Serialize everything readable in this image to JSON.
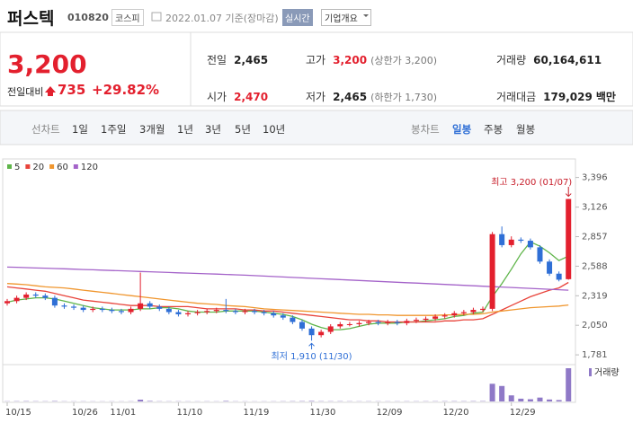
{
  "header": {
    "name": "퍼스텍",
    "code": "010820",
    "market": "코스피",
    "date": "2022.01.07 기준(장마감)",
    "realtime": "실시간",
    "company": "기업개요"
  },
  "price": {
    "current": "3,200",
    "change_label": "전일대비",
    "change": "735",
    "rate": "+29.82%"
  },
  "stats": [
    {
      "label": "전일",
      "value": "2,465"
    },
    {
      "label": "고가",
      "value": "3,200",
      "note": "(상한가 3,200)"
    },
    {
      "label": "거래량",
      "value": "60,164,611"
    },
    {
      "label": "시가",
      "value": "2,470"
    },
    {
      "label": "저가",
      "value": "2,465",
      "note": "(하한가 1,730)"
    },
    {
      "label": "거래대금",
      "value": "179,029",
      "unit": "백만"
    }
  ],
  "tabs": {
    "line_label": "선차트",
    "line": [
      "1일",
      "1주일",
      "3개월",
      "1년",
      "3년",
      "5년",
      "10년"
    ],
    "candle_label": "봉차트",
    "candle": [
      "일봉",
      "주봉",
      "월봉"
    ]
  },
  "chart_data": {
    "type": "candlestick",
    "categories": [
      "10/15",
      null,
      null,
      null,
      null,
      null,
      null,
      "10/26",
      null,
      null,
      null,
      "11/01",
      null,
      null,
      null,
      null,
      null,
      null,
      "11/10",
      null,
      null,
      null,
      null,
      null,
      null,
      "11/19",
      null,
      null,
      null,
      null,
      null,
      null,
      "11/30",
      null,
      null,
      null,
      null,
      null,
      null,
      "12/09",
      null,
      null,
      null,
      null,
      null,
      null,
      "12/20",
      null,
      null,
      null,
      null,
      null,
      null,
      "12/29",
      null,
      null,
      null,
      null,
      null,
      null
    ],
    "open": [
      2250,
      2270,
      2300,
      2330,
      2320,
      2300,
      2230,
      2220,
      2210,
      2190,
      2200,
      2190,
      2180,
      2170,
      2200,
      2250,
      2220,
      2200,
      2170,
      2150,
      2160,
      2170,
      2180,
      2190,
      2180,
      2170,
      2180,
      2170,
      2160,
      2140,
      2120,
      2080,
      2020,
      1960,
      1990,
      2040,
      2060,
      2060,
      2070,
      2080,
      2070,
      2080,
      2070,
      2090,
      2100,
      2110,
      2130,
      2140,
      2160,
      2170,
      2190,
      2200,
      2880,
      2780,
      2830,
      2820,
      2760,
      2630,
      2520,
      2470
    ],
    "high": [
      2290,
      2320,
      2350,
      2350,
      2340,
      2320,
      2250,
      2240,
      2230,
      2220,
      2220,
      2210,
      2200,
      2220,
      2530,
      2270,
      2240,
      2220,
      2190,
      2180,
      2190,
      2200,
      2210,
      2290,
      2200,
      2200,
      2200,
      2190,
      2180,
      2160,
      2140,
      2100,
      2040,
      2010,
      2060,
      2080,
      2080,
      2090,
      2100,
      2100,
      2100,
      2100,
      2110,
      2120,
      2130,
      2150,
      2160,
      2180,
      2190,
      2210,
      2220,
      2900,
      2950,
      2860,
      2850,
      2840,
      2780,
      2650,
      2540,
      3200
    ],
    "low": [
      2230,
      2250,
      2280,
      2300,
      2280,
      2210,
      2200,
      2190,
      2170,
      2170,
      2170,
      2160,
      2150,
      2150,
      2180,
      2200,
      2180,
      2150,
      2130,
      2130,
      2140,
      2150,
      2160,
      2160,
      2150,
      2150,
      2150,
      2140,
      2120,
      2100,
      2060,
      2000,
      1910,
      1940,
      1970,
      2020,
      2040,
      2040,
      2050,
      2050,
      2050,
      2050,
      2050,
      2070,
      2080,
      2090,
      2110,
      2120,
      2140,
      2150,
      2170,
      2180,
      2760,
      2760,
      2800,
      2740,
      2610,
      2500,
      2450,
      2465
    ],
    "close": [
      2270,
      2300,
      2330,
      2320,
      2300,
      2230,
      2220,
      2210,
      2190,
      2200,
      2190,
      2180,
      2170,
      2200,
      2250,
      2220,
      2200,
      2170,
      2150,
      2160,
      2170,
      2180,
      2190,
      2180,
      2170,
      2180,
      2170,
      2160,
      2140,
      2120,
      2080,
      2020,
      1960,
      1990,
      2040,
      2060,
      2060,
      2070,
      2080,
      2070,
      2080,
      2070,
      2090,
      2100,
      2110,
      2130,
      2140,
      2160,
      2170,
      2190,
      2200,
      2880,
      2780,
      2830,
      2820,
      2760,
      2630,
      2520,
      2465,
      3200
    ],
    "up_color": "#e3202e",
    "down_color": "#2f6fd6",
    "ma": [
      {
        "name": "5",
        "color": "#5fb54a",
        "values": [
          2260,
          2280,
          2290,
          2300,
          2300,
          2290,
          2270,
          2250,
          2230,
          2210,
          2200,
          2190,
          2190,
          2190,
          2200,
          2200,
          2210,
          2210,
          2200,
          2180,
          2170,
          2170,
          2170,
          2180,
          2180,
          2180,
          2180,
          2170,
          2160,
          2150,
          2130,
          2100,
          2060,
          2030,
          2010,
          2010,
          2020,
          2040,
          2060,
          2070,
          2070,
          2070,
          2080,
          2080,
          2090,
          2100,
          2110,
          2130,
          2140,
          2160,
          2170,
          2310,
          2430,
          2560,
          2700,
          2810,
          2770,
          2710,
          2640,
          2680
        ]
      },
      {
        "name": "20",
        "color": "#e8433a",
        "values": [
          2400,
          2390,
          2380,
          2370,
          2360,
          2340,
          2320,
          2300,
          2280,
          2270,
          2260,
          2250,
          2240,
          2230,
          2230,
          2230,
          2220,
          2220,
          2220,
          2220,
          2210,
          2200,
          2200,
          2200,
          2200,
          2190,
          2190,
          2180,
          2180,
          2170,
          2160,
          2150,
          2140,
          2130,
          2120,
          2110,
          2100,
          2100,
          2090,
          2090,
          2080,
          2080,
          2080,
          2080,
          2080,
          2080,
          2090,
          2090,
          2100,
          2100,
          2110,
          2150,
          2190,
          2230,
          2270,
          2310,
          2340,
          2370,
          2390,
          2440
        ]
      },
      {
        "name": "60",
        "color": "#f0962e",
        "values": [
          2430,
          2425,
          2420,
          2410,
          2400,
          2395,
          2390,
          2380,
          2370,
          2360,
          2350,
          2340,
          2330,
          2320,
          2310,
          2300,
          2290,
          2280,
          2270,
          2260,
          2250,
          2245,
          2240,
          2230,
          2225,
          2220,
          2210,
          2200,
          2195,
          2190,
          2185,
          2180,
          2175,
          2170,
          2165,
          2160,
          2155,
          2150,
          2150,
          2145,
          2145,
          2140,
          2140,
          2140,
          2140,
          2140,
          2145,
          2145,
          2150,
          2150,
          2155,
          2170,
          2180,
          2190,
          2200,
          2210,
          2215,
          2220,
          2225,
          2235
        ]
      },
      {
        "name": "120",
        "color": "#a463c9",
        "values": [
          2580,
          2578,
          2575,
          2572,
          2570,
          2567,
          2564,
          2561,
          2558,
          2555,
          2552,
          2549,
          2546,
          2543,
          2540,
          2537,
          2534,
          2531,
          2528,
          2525,
          2522,
          2519,
          2516,
          2513,
          2510,
          2506,
          2502,
          2498,
          2494,
          2490,
          2486,
          2482,
          2478,
          2474,
          2470,
          2466,
          2462,
          2458,
          2454,
          2450,
          2446,
          2442,
          2438,
          2434,
          2430,
          2426,
          2422,
          2418,
          2414,
          2410,
          2406,
          2402,
          2398,
          2394,
          2390,
          2386,
          2382,
          2378,
          2374,
          2370
        ]
      }
    ],
    "volume": {
      "name": "거래량",
      "color": "#8f79c7",
      "values": [
        400000,
        500000,
        600000,
        450000,
        400000,
        700000,
        350000,
        300000,
        350000,
        300000,
        280000,
        300000,
        280000,
        350000,
        3200000,
        900000,
        400000,
        350000,
        400000,
        300000,
        300000,
        350000,
        300000,
        900000,
        350000,
        300000,
        280000,
        300000,
        320000,
        400000,
        500000,
        600000,
        900000,
        500000,
        450000,
        500000,
        400000,
        350000,
        380000,
        350000,
        320000,
        350000,
        400000,
        380000,
        420000,
        450000,
        500000,
        550000,
        500000,
        600000,
        650000,
        32000000,
        28000000,
        11000000,
        5000000,
        4000000,
        7000000,
        3500000,
        2500000,
        60164611
      ]
    },
    "ylim": [
      1700,
      3540
    ],
    "yticks": [
      {
        "value": 1781,
        "label": "1,781"
      },
      {
        "value": 2050,
        "label": "2,050"
      },
      {
        "value": 2319,
        "label": "2,319"
      },
      {
        "value": 2588,
        "label": "2,588"
      },
      {
        "value": 2857,
        "label": "2,857"
      },
      {
        "value": 3126,
        "label": "3,126"
      },
      {
        "value": 3396,
        "label": "3,396"
      }
    ],
    "annotations": {
      "high": "최고 3,200 (01/07)",
      "low": "최저 1,910 (11/30)"
    }
  }
}
